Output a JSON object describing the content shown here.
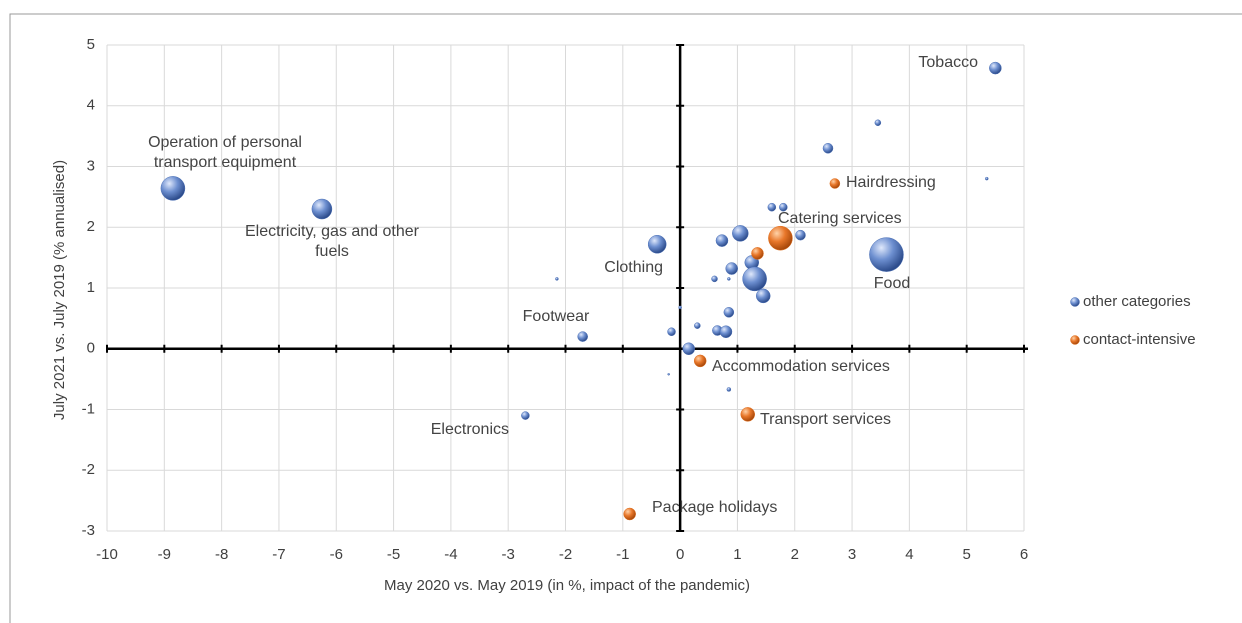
{
  "chart_data": {
    "type": "bubble",
    "x_label": "May 2020 vs. May 2019 (in %, impact of the pandemic)",
    "y_label": "July 2021 vs. July 2019 (% annualised)",
    "xlim": [
      -10,
      6
    ],
    "xticks": [
      -10,
      -9,
      -8,
      -7,
      -6,
      -5,
      -4,
      -3,
      -2,
      -1,
      0,
      1,
      2,
      3,
      4,
      5,
      6
    ],
    "ylim": [
      -3,
      5
    ],
    "yticks": [
      -3,
      -2,
      -1,
      0,
      1,
      2,
      3,
      4,
      5
    ],
    "grid": true,
    "legend": "right",
    "series": [
      {
        "name": "other categories",
        "color": "#4a6fb5",
        "x": [
          5.5,
          3.45,
          2.58,
          5.35,
          1.6,
          1.8,
          2.1,
          1.05,
          0.73,
          -0.4,
          3.6,
          1.25,
          1.3,
          0.9,
          0.6,
          0.85,
          1.45,
          0.85,
          -2.15,
          0.0,
          0.3,
          -0.15,
          0.65,
          0.8,
          -1.7,
          0.15,
          -0.2,
          0.85,
          -2.7,
          -8.85,
          -6.25
        ],
        "values": [
          4.62,
          3.72,
          3.3,
          2.8,
          2.33,
          2.33,
          1.87,
          1.9,
          1.78,
          1.72,
          1.55,
          1.42,
          1.15,
          1.32,
          1.15,
          1.15,
          0.87,
          0.6,
          1.15,
          0.68,
          0.38,
          0.28,
          0.3,
          0.28,
          0.2,
          0.0,
          -0.42,
          -0.67,
          -1.1,
          2.64,
          2.3
        ],
        "sizes": [
          6,
          3,
          5,
          1.5,
          4,
          4,
          5,
          8,
          6,
          9,
          17,
          7,
          12,
          6,
          3,
          1.5,
          7,
          5,
          1.5,
          1.5,
          3,
          4,
          5,
          6,
          5,
          6,
          1,
          2,
          4,
          12,
          10
        ]
      },
      {
        "name": "contact-intensive",
        "color": "#e0701f",
        "x": [
          2.7,
          1.75,
          1.35,
          0.35,
          1.18,
          -0.88
        ],
        "values": [
          2.72,
          1.82,
          1.57,
          -0.2,
          -1.08,
          -2.72
        ],
        "sizes": [
          5,
          12,
          6,
          6,
          7,
          6
        ]
      }
    ],
    "annotations": [
      [
        "Tobacco"
      ],
      [
        "Operation of personal",
        "transport equipment"
      ],
      [
        "Electricity, gas and other",
        "fuels"
      ],
      [
        "Clothing"
      ],
      [
        "Footwear"
      ],
      [
        "Electronics"
      ],
      [
        "Hairdressing"
      ],
      [
        "Catering services"
      ],
      [
        "Food"
      ],
      [
        "Accommodation services"
      ],
      [
        "Transport services"
      ],
      [
        "Package holidays"
      ]
    ]
  }
}
